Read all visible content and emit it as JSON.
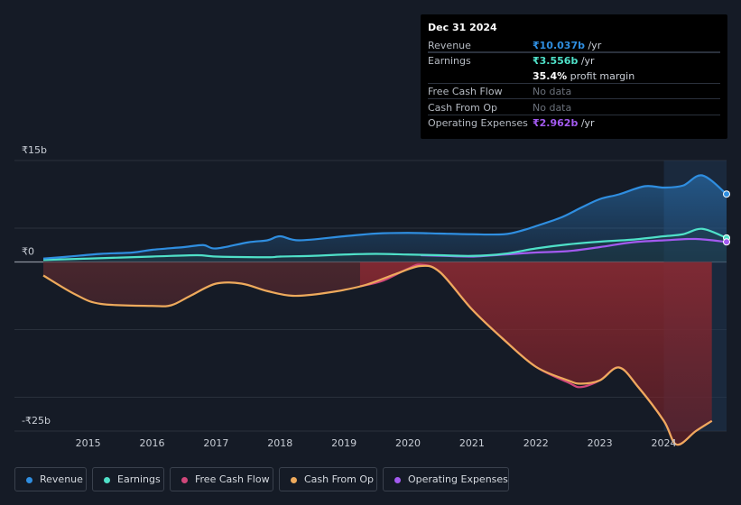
{
  "tooltip": {
    "date": "Dec 31 2024",
    "rows": [
      {
        "label": "Revenue",
        "value": "₹10.037b",
        "unit": " /yr",
        "color": "#2f8ee0"
      },
      {
        "label": "Earnings",
        "value": "₹3.556b",
        "unit": " /yr",
        "color": "#4fe0c8"
      },
      {
        "label": "",
        "value": "35.4%",
        "unit": " profit margin",
        "color": "#ffffff"
      },
      {
        "label": "Free Cash Flow",
        "value": "No data",
        "unit": "",
        "color": "#6b717b"
      },
      {
        "label": "Cash From Op",
        "value": "No data",
        "unit": "",
        "color": "#6b717b"
      },
      {
        "label": "Operating Expenses",
        "value": "₹2.962b",
        "unit": " /yr",
        "color": "#a35af0"
      }
    ]
  },
  "legend": [
    {
      "label": "Revenue",
      "color": "#2f8ee0"
    },
    {
      "label": "Earnings",
      "color": "#4fe0c8"
    },
    {
      "label": "Free Cash Flow",
      "color": "#d0477a"
    },
    {
      "label": "Cash From Op",
      "color": "#eeaa5c"
    },
    {
      "label": "Operating Expenses",
      "color": "#a35af0"
    }
  ],
  "chart_data": {
    "type": "area",
    "ylim": [
      -25,
      15
    ],
    "y_tick_labels": [
      {
        "value": 15,
        "label": "₹15b"
      },
      {
        "value": 0,
        "label": "₹0"
      },
      {
        "value": -25,
        "label": "-₹25b"
      }
    ],
    "x_tick_labels": [
      "2015",
      "2016",
      "2017",
      "2018",
      "2019",
      "2020",
      "2021",
      "2022",
      "2023",
      "2024"
    ],
    "x_ticks": [
      2015,
      2016,
      2017,
      2018,
      2019,
      2020,
      2021,
      2022,
      2023,
      2024
    ],
    "xlim": [
      2014.2,
      2025.0
    ],
    "highlight_start": 2024.0,
    "series": [
      {
        "name": "Revenue",
        "color": "#2f8ee0",
        "x": [
          2014.3,
          2014.7,
          2015.2,
          2015.7,
          2016.0,
          2016.5,
          2016.8,
          2017.0,
          2017.5,
          2017.8,
          2018.0,
          2018.3,
          2019.0,
          2019.5,
          2020.0,
          2020.5,
          2021.0,
          2021.5,
          2021.8,
          2022.0,
          2022.4,
          2022.7,
          2023.0,
          2023.3,
          2023.7,
          2024.0,
          2024.3,
          2024.6,
          2024.98
        ],
        "y": [
          0.5,
          0.8,
          1.2,
          1.4,
          1.8,
          2.2,
          2.5,
          2.0,
          2.9,
          3.2,
          3.8,
          3.2,
          3.8,
          4.2,
          4.3,
          4.2,
          4.1,
          4.1,
          4.7,
          5.3,
          6.6,
          8.0,
          9.3,
          10.0,
          11.2,
          11.0,
          11.3,
          12.8,
          10.037
        ]
      },
      {
        "name": "Earnings",
        "color": "#4fe0c8",
        "x": [
          2014.3,
          2015.0,
          2016.0,
          2016.7,
          2017.0,
          2017.8,
          2018.0,
          2018.5,
          2019.0,
          2019.5,
          2020.0,
          2020.5,
          2021.0,
          2021.5,
          2022.0,
          2022.5,
          2023.0,
          2023.5,
          2024.0,
          2024.3,
          2024.6,
          2024.98
        ],
        "y": [
          0.3,
          0.5,
          0.8,
          1.0,
          0.8,
          0.7,
          0.8,
          0.9,
          1.1,
          1.2,
          1.1,
          1.0,
          0.9,
          1.2,
          2.0,
          2.6,
          3.0,
          3.3,
          3.8,
          4.1,
          4.9,
          3.556
        ]
      },
      {
        "name": "Operating Expenses",
        "color": "#a35af0",
        "x": [
          2020.2,
          2020.6,
          2021.0,
          2021.5,
          2022.0,
          2022.5,
          2023.0,
          2023.5,
          2024.0,
          2024.5,
          2024.98
        ],
        "y": [
          1.0,
          0.9,
          0.8,
          1.1,
          1.4,
          1.6,
          2.2,
          2.9,
          3.2,
          3.4,
          2.962
        ]
      },
      {
        "name": "Free Cash Flow",
        "color": "#d0477a",
        "x": [
          2019.25,
          2019.6,
          2020.0,
          2020.2,
          2020.5,
          2021.0,
          2021.5,
          2022.0,
          2022.5,
          2022.7,
          2023.0,
          2023.3,
          2023.6,
          2024.0,
          2024.2,
          2024.5,
          2024.75
        ],
        "y": [
          -3.6,
          -2.8,
          -1.0,
          -0.4,
          -1.5,
          -7.0,
          -11.5,
          -15.5,
          -17.8,
          -18.5,
          -17.5,
          -15.6,
          -18.5,
          -23.5,
          -27.0,
          -25.0,
          -23.5
        ]
      },
      {
        "name": "Cash From Op",
        "color": "#eeaa5c",
        "x": [
          2014.3,
          2014.8,
          2015.2,
          2016.0,
          2016.3,
          2016.6,
          2017.0,
          2017.4,
          2017.8,
          2018.2,
          2018.7,
          2019.3,
          2019.8,
          2020.2,
          2020.5,
          2021.0,
          2021.5,
          2022.0,
          2022.5,
          2022.7,
          2023.0,
          2023.3,
          2023.6,
          2024.0,
          2024.2,
          2024.5,
          2024.75
        ],
        "y": [
          -2.0,
          -4.8,
          -6.2,
          -6.5,
          -6.4,
          -5.0,
          -3.2,
          -3.2,
          -4.3,
          -5.0,
          -4.6,
          -3.5,
          -1.8,
          -0.6,
          -1.5,
          -7.0,
          -11.5,
          -15.5,
          -17.5,
          -18.0,
          -17.5,
          -15.6,
          -18.5,
          -23.5,
          -27.0,
          -25.0,
          -23.5
        ]
      }
    ]
  }
}
